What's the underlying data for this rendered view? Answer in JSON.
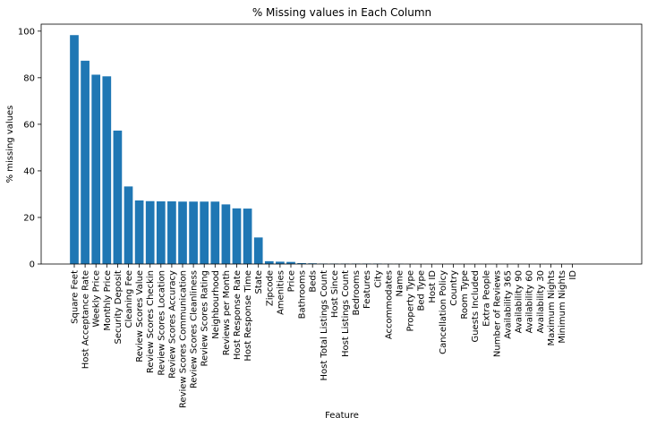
{
  "chart_data": {
    "type": "bar",
    "title": "% Missing values in Each Column",
    "xlabel": "Feature",
    "ylabel": "% missing values",
    "ylim": [
      0,
      103
    ],
    "yticks": [
      0,
      20,
      40,
      60,
      80,
      100
    ],
    "grid": false,
    "legend": "none",
    "bar_color": "#1f77b4",
    "categories": [
      "Square Feet",
      "Host Acceptance Rate",
      "Weekly Price",
      "Monthly Price",
      "Security Deposit",
      "Cleaning Fee",
      "Review Scores Value",
      "Review Scores Checkin",
      "Review Scores Location",
      "Review Scores Accuracy",
      "Review Scores Communication",
      "Review Scores Cleanliness",
      "Review Scores Rating",
      "Neighbourhood",
      "Reviews per Month",
      "Host Response Rate",
      "Host Response Time",
      "State",
      "Zipcode",
      "Amenities",
      "Price",
      "Bathrooms",
      "Beds",
      "Host Total Listings Count",
      "Host Since",
      "Host Listings Count",
      "Bedrooms",
      "Features",
      "City",
      "Accommodates",
      "Name",
      "Property Type",
      "Bed Type",
      "Host ID",
      "Cancellation Policy",
      "Country",
      "Room Type",
      "Guests Included",
      "Extra People",
      "Number of Reviews",
      "Availability 365",
      "Availability 90",
      "Availability 60",
      "Availability 30",
      "Maximum Nights",
      "Minimum Nights",
      "ID"
    ],
    "values": [
      98.3,
      87.3,
      81.3,
      80.6,
      57.3,
      33.3,
      27.3,
      27.0,
      26.9,
      26.9,
      26.8,
      26.8,
      26.8,
      26.8,
      25.6,
      23.9,
      23.8,
      11.4,
      1.2,
      1.0,
      0.9,
      0.4,
      0.3,
      0.2,
      0.2,
      0.2,
      0.2,
      0.2,
      0.2,
      0.1,
      0.1,
      0.05,
      0.0,
      0.0,
      0.0,
      0.0,
      0.0,
      0.0,
      0.0,
      0.0,
      0.0,
      0.0,
      0.0,
      0.0,
      0.0,
      0.0,
      0.0
    ]
  }
}
